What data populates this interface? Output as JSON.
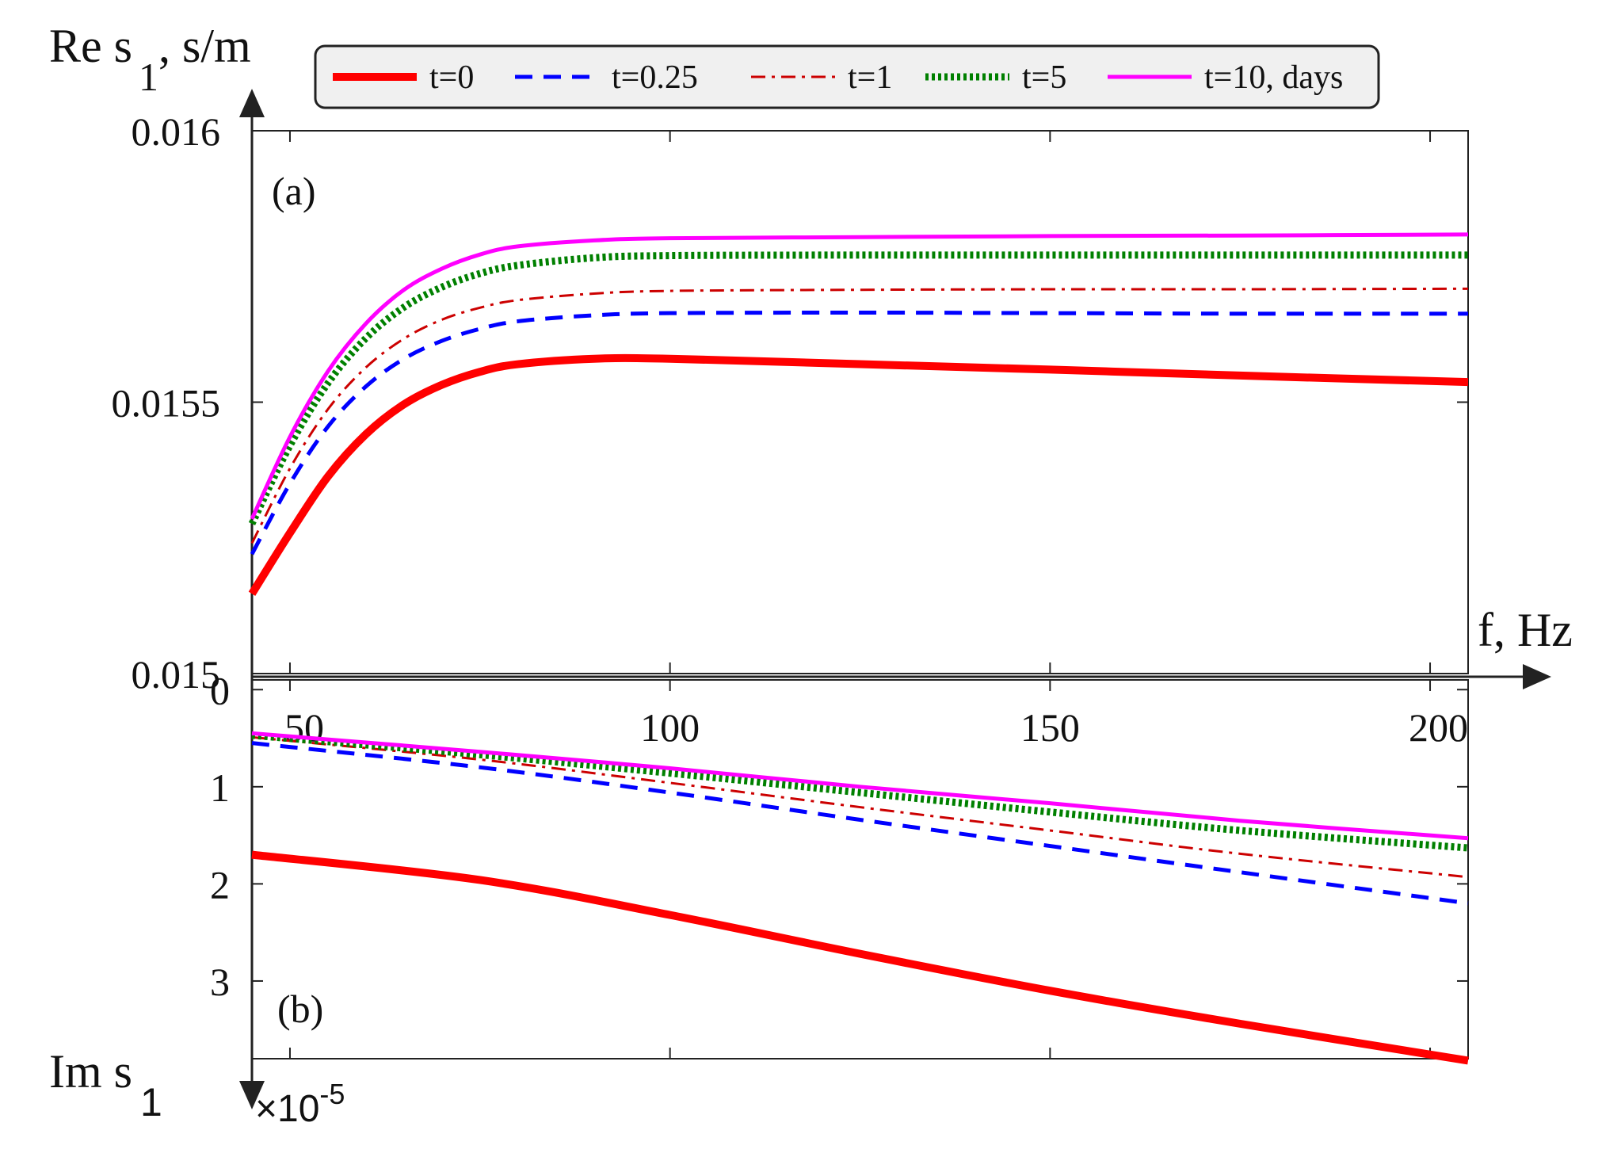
{
  "chart_data": [
    {
      "panel": "a",
      "panel_label": "(a)",
      "type": "line",
      "ylabel_main": "Re s",
      "ylabel_sub": "1",
      "ylabel_unit": ", s/m",
      "xlabel": "f, Hz",
      "xlim": [
        45,
        205
      ],
      "ylim": [
        0.015,
        0.016
      ],
      "yticks": [
        0.015,
        0.0155,
        0.016
      ],
      "ytick_labels": [
        "0.015",
        "0.0155",
        "0.016"
      ],
      "x": [
        45,
        50,
        55,
        60,
        65,
        70,
        75,
        80,
        90,
        100,
        125,
        150,
        175,
        205
      ],
      "series": [
        {
          "name": "t=0",
          "values": [
            0.015147,
            0.015259,
            0.015363,
            0.015441,
            0.015496,
            0.015532,
            0.015556,
            0.01557,
            0.01558,
            0.01558,
            0.01557,
            0.01556,
            0.015549,
            0.015537
          ]
        },
        {
          "name": "t=0.25",
          "values": [
            0.01522,
            0.01535,
            0.015455,
            0.015529,
            0.01558,
            0.015613,
            0.015635,
            0.015649,
            0.01566,
            0.015664,
            0.015665,
            0.015664,
            0.015663,
            0.015663
          ]
        },
        {
          "name": "t=1",
          "values": [
            0.01524,
            0.015378,
            0.015487,
            0.015564,
            0.015617,
            0.015652,
            0.015674,
            0.015688,
            0.0157,
            0.015705,
            0.015707,
            0.015708,
            0.015708,
            0.015709
          ]
        },
        {
          "name": "t=5",
          "values": [
            0.015276,
            0.01542,
            0.015535,
            0.015618,
            0.015675,
            0.015712,
            0.015737,
            0.015752,
            0.015766,
            0.01577,
            0.015771,
            0.015771,
            0.015771,
            0.015771
          ]
        },
        {
          "name": "t=10, days",
          "values": [
            0.015285,
            0.015436,
            0.015557,
            0.015645,
            0.015707,
            0.015746,
            0.015772,
            0.015787,
            0.015798,
            0.015802,
            0.015804,
            0.015806,
            0.015807,
            0.015809
          ]
        }
      ]
    },
    {
      "panel": "b",
      "panel_label": "(b)",
      "type": "line",
      "ylabel_main": "Im s",
      "ylabel_sub": "1",
      "exponent_label": "×10",
      "exponent_power": "-5",
      "ylim_inverted": [
        3.8,
        -0.1
      ],
      "yticks": [
        0,
        1,
        2,
        3
      ],
      "ytick_labels": [
        "0",
        "1",
        "2",
        "3"
      ],
      "xticks": [
        50,
        100,
        150,
        200
      ],
      "xtick_labels": [
        "50",
        "100",
        "150",
        "200"
      ],
      "x": [
        45,
        75,
        100,
        125,
        150,
        175,
        205
      ],
      "series": [
        {
          "name": "t=0",
          "values": [
            1.7,
            1.96,
            2.32,
            2.72,
            3.1,
            3.44,
            3.82
          ]
        },
        {
          "name": "t=0.25",
          "values": [
            0.55,
            0.8,
            1.06,
            1.34,
            1.61,
            1.88,
            2.2
          ]
        },
        {
          "name": "t=1",
          "values": [
            0.49,
            0.72,
            0.96,
            1.21,
            1.45,
            1.69,
            1.93
          ]
        },
        {
          "name": "t=5",
          "values": [
            0.47,
            0.67,
            0.86,
            1.06,
            1.26,
            1.45,
            1.63
          ]
        },
        {
          "name": "t=10, days",
          "values": [
            0.45,
            0.64,
            0.81,
            1.0,
            1.17,
            1.35,
            1.53
          ]
        }
      ]
    }
  ],
  "legend": {
    "placement": "top-center",
    "entries": [
      {
        "label": "t=0",
        "color": "#ff0000",
        "dash": "solid",
        "weight": "heavy"
      },
      {
        "label": "t=0.25",
        "color": "#0000ff",
        "dash": "dashed",
        "weight": "medium"
      },
      {
        "label": "t=1",
        "color": "#cc0000",
        "dash": "dashdot",
        "weight": "thin"
      },
      {
        "label": "t=5",
        "color": "#008000",
        "dash": "dotted",
        "weight": "heavy"
      },
      {
        "label": "t=10, days",
        "color": "#ff00ff",
        "dash": "solid",
        "weight": "medium"
      }
    ]
  }
}
